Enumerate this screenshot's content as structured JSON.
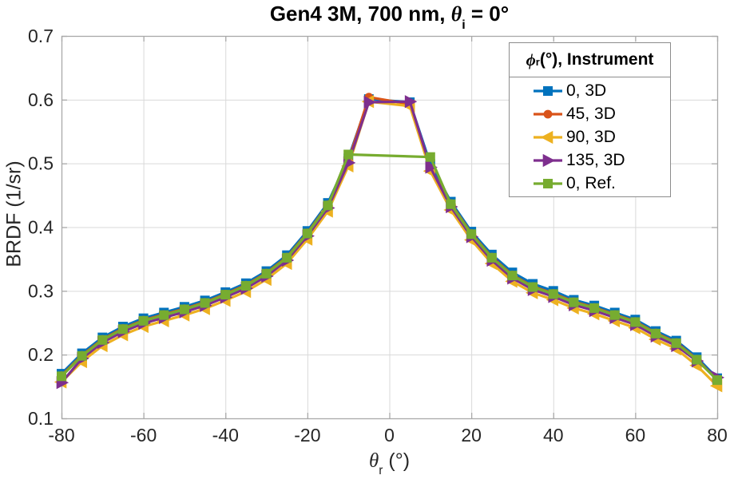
{
  "title": {
    "text_before": "Gen4 3M, 700 nm, ",
    "symbol": "θ",
    "subscript": "i",
    "text_after": " = 0°"
  },
  "axes": {
    "ylabel": "BRDF (1/sr)",
    "xlabel_symbol": "θ",
    "xlabel_sub": "r",
    "xlabel_after": " (°)"
  },
  "legend": {
    "title_symbol": "ϕ",
    "title_sub": "r",
    "title_after": " (°), Instrument"
  },
  "chart_data": {
    "type": "line",
    "title": "Gen4 3M, 700 nm, theta_i = 0 deg",
    "xlabel": "theta_r (deg)",
    "ylabel": "BRDF (1/sr)",
    "xlim": [
      -80,
      80
    ],
    "ylim": [
      0.1,
      0.7
    ],
    "xticks": [
      -80,
      -60,
      -40,
      -20,
      0,
      20,
      40,
      60,
      80
    ],
    "yticks": [
      0.1,
      0.2,
      0.3,
      0.4,
      0.5,
      0.6,
      0.7
    ],
    "grid": true,
    "legend_title": "phi_r (deg), Instrument",
    "legend_position": "top-right",
    "colors": {
      "axis_box": "#a9a9a9",
      "grid": "#d9d9d9",
      "tick_text": "#262626"
    },
    "series": [
      {
        "name": "0, 3D",
        "color": "#0072BD",
        "marker": "square",
        "x": [
          -80,
          -75,
          -70,
          -65,
          -60,
          -55,
          -50,
          -45,
          -40,
          -35,
          -30,
          -25,
          -20,
          -15,
          -10,
          -5,
          5,
          10,
          15,
          20,
          25,
          30,
          35,
          40,
          45,
          50,
          55,
          60,
          65,
          70,
          75,
          80
        ],
        "y": [
          0.17,
          0.202,
          0.227,
          0.244,
          0.257,
          0.266,
          0.275,
          0.285,
          0.298,
          0.312,
          0.331,
          0.356,
          0.394,
          0.438,
          0.508,
          0.601,
          0.596,
          0.499,
          0.44,
          0.393,
          0.357,
          0.329,
          0.311,
          0.3,
          0.286,
          0.277,
          0.266,
          0.255,
          0.237,
          0.222,
          0.196,
          0.163
        ]
      },
      {
        "name": "45, 3D",
        "color": "#D95319",
        "marker": "circle",
        "x": [
          -80,
          -75,
          -70,
          -65,
          -60,
          -55,
          -50,
          -45,
          -40,
          -35,
          -30,
          -25,
          -20,
          -15,
          -10,
          -5,
          5,
          10,
          15,
          20,
          25,
          30,
          35,
          40,
          45,
          50,
          55,
          60,
          65,
          70,
          75,
          80
        ],
        "y": [
          0.167,
          0.199,
          0.224,
          0.241,
          0.254,
          0.263,
          0.272,
          0.282,
          0.295,
          0.309,
          0.328,
          0.353,
          0.391,
          0.435,
          0.504,
          0.604,
          0.593,
          0.492,
          0.437,
          0.39,
          0.353,
          0.325,
          0.307,
          0.296,
          0.283,
          0.274,
          0.263,
          0.252,
          0.234,
          0.219,
          0.193,
          0.161
        ]
      },
      {
        "name": "90, 3D",
        "color": "#EDB120",
        "marker": "triangle-left",
        "x": [
          -80,
          -75,
          -70,
          -65,
          -60,
          -55,
          -50,
          -45,
          -40,
          -35,
          -30,
          -25,
          -20,
          -15,
          -10,
          -5,
          5,
          10,
          15,
          20,
          25,
          30,
          35,
          40,
          45,
          50,
          55,
          60,
          65,
          70,
          75,
          80
        ],
        "y": [
          0.157,
          0.189,
          0.214,
          0.231,
          0.244,
          0.253,
          0.262,
          0.272,
          0.285,
          0.299,
          0.318,
          0.343,
          0.381,
          0.425,
          0.496,
          0.597,
          0.59,
          0.488,
          0.427,
          0.38,
          0.343,
          0.315,
          0.297,
          0.286,
          0.273,
          0.264,
          0.253,
          0.242,
          0.224,
          0.209,
          0.183,
          0.151
        ]
      },
      {
        "name": "135, 3D",
        "color": "#7E2F8E",
        "marker": "triangle-right",
        "x": [
          -80,
          -75,
          -70,
          -65,
          -60,
          -55,
          -50,
          -45,
          -40,
          -35,
          -30,
          -25,
          -20,
          -15,
          -10,
          -5,
          5,
          10,
          15,
          20,
          25,
          30,
          35,
          40,
          45,
          50,
          55,
          60,
          65,
          70,
          75,
          80
        ],
        "y": [
          0.156,
          0.194,
          0.219,
          0.236,
          0.249,
          0.258,
          0.267,
          0.277,
          0.29,
          0.304,
          0.323,
          0.348,
          0.386,
          0.43,
          0.501,
          0.596,
          0.597,
          0.494,
          0.432,
          0.385,
          0.348,
          0.32,
          0.302,
          0.291,
          0.278,
          0.269,
          0.258,
          0.247,
          0.229,
          0.214,
          0.19,
          0.164
        ]
      },
      {
        "name": "0, Ref.",
        "color": "#77AC30",
        "marker": "square",
        "x": [
          -80,
          -75,
          -70,
          -65,
          -60,
          -55,
          -50,
          -45,
          -40,
          -35,
          -30,
          -25,
          -20,
          -15,
          -10,
          10,
          15,
          20,
          25,
          30,
          35,
          40,
          45,
          50,
          55,
          60,
          65,
          70,
          75,
          80
        ],
        "y": [
          0.166,
          0.198,
          0.223,
          0.24,
          0.253,
          0.262,
          0.271,
          0.281,
          0.294,
          0.308,
          0.327,
          0.352,
          0.39,
          0.434,
          0.514,
          0.51,
          0.436,
          0.389,
          0.352,
          0.324,
          0.306,
          0.295,
          0.282,
          0.273,
          0.262,
          0.251,
          0.233,
          0.218,
          0.192,
          0.16
        ]
      }
    ]
  }
}
